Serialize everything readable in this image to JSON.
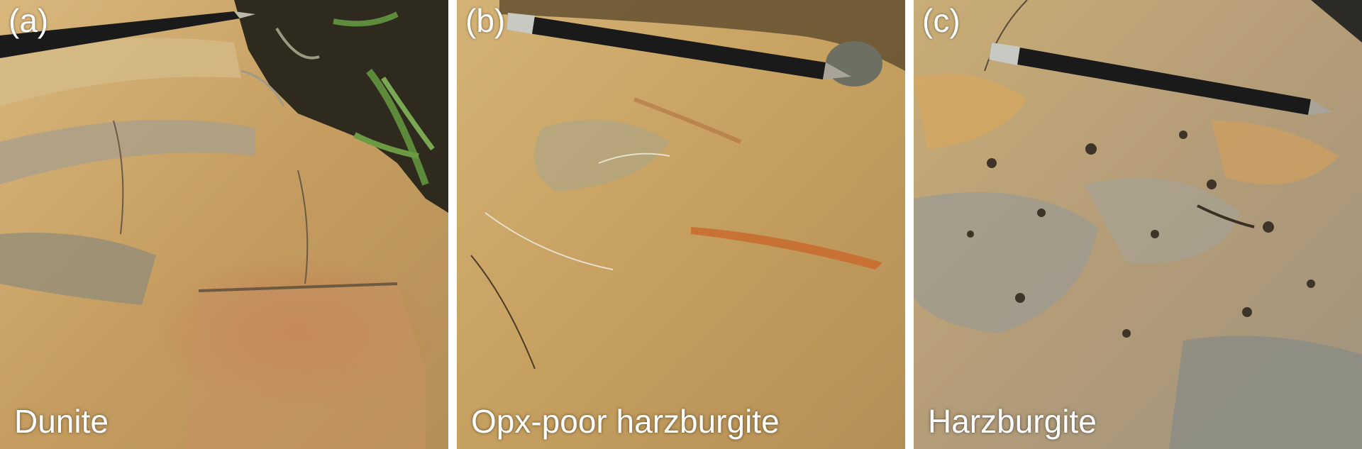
{
  "panels": [
    {
      "label": "(a)",
      "caption": "Dunite",
      "scene": {
        "rock_color": "#c9a46a",
        "vegetation": true,
        "pencil_scale": "pencil-icon"
      }
    },
    {
      "label": "(b)",
      "caption": "Opx-poor harzburgite",
      "scene": {
        "rock_color": "#c7a462",
        "vegetation": false,
        "pencil_scale": "pencil-icon"
      }
    },
    {
      "label": "(c)",
      "caption": "Harzburgite",
      "scene": {
        "rock_color": "#b8a486",
        "vegetation": false,
        "pencil_scale": "pencil-icon"
      }
    }
  ]
}
